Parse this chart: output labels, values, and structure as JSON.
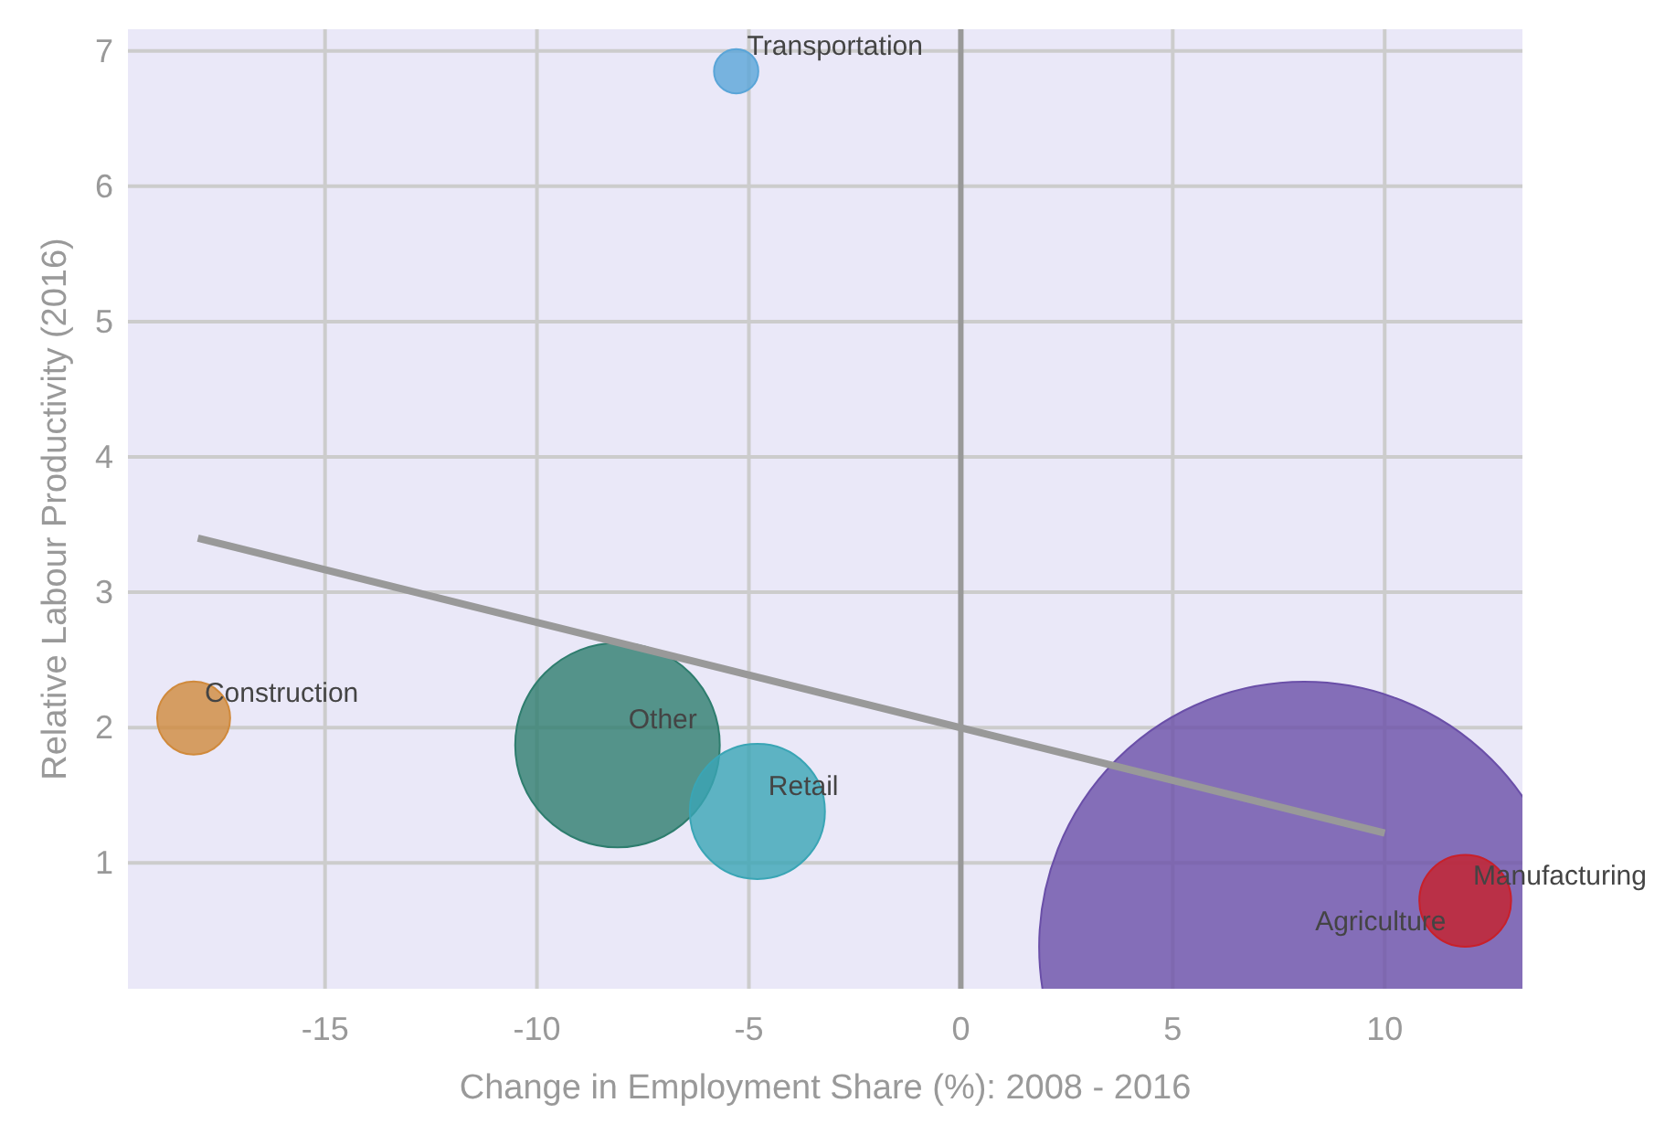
{
  "chart_data": {
    "type": "bubble",
    "xlabel": "Change in Employment Share (%): 2008 - 2016",
    "ylabel": "Relative Labour Productivity (2016)",
    "xlim": [
      -19.65,
      13.25
    ],
    "ylim": [
      0.07,
      7.16
    ],
    "xticks": [
      -15,
      -10,
      -5,
      0,
      5,
      10
    ],
    "yticks": [
      1,
      2,
      3,
      4,
      5,
      6,
      7
    ],
    "grid": true,
    "ref_lines": [
      {
        "axis": "x",
        "value": 0,
        "color": "#999999"
      }
    ],
    "series": [
      {
        "name": "Transportation",
        "color": "#5aa5d8",
        "x": [
          -5.3
        ],
        "values": [
          6.85
        ],
        "sizes": [
          0.007
        ]
      },
      {
        "name": "Construction",
        "color": "#d08a3c",
        "x": [
          -18.1
        ],
        "values": [
          2.07
        ],
        "sizes": [
          0.019
        ]
      },
      {
        "name": "Other",
        "color": "#2e7d6e",
        "x": [
          -8.1
        ],
        "values": [
          1.87
        ],
        "sizes": [
          0.149
        ]
      },
      {
        "name": "Retail",
        "color": "#3aa5b5",
        "x": [
          -4.8
        ],
        "values": [
          1.38
        ],
        "sizes": [
          0.065
        ]
      },
      {
        "name": "Agriculture",
        "color": "#6a4fa8",
        "x": [
          8.1
        ],
        "values": [
          0.38
        ],
        "sizes": [
          1
        ]
      },
      {
        "name": "Manufacturing",
        "color": "#c8202a",
        "x": [
          11.9
        ],
        "values": [
          0.72
        ],
        "sizes": [
          0.03
        ]
      },
      {
        "type": "line",
        "color": "#999999",
        "x": [
          -18,
          10
        ],
        "values": [
          3.4,
          1.22
        ]
      }
    ]
  }
}
